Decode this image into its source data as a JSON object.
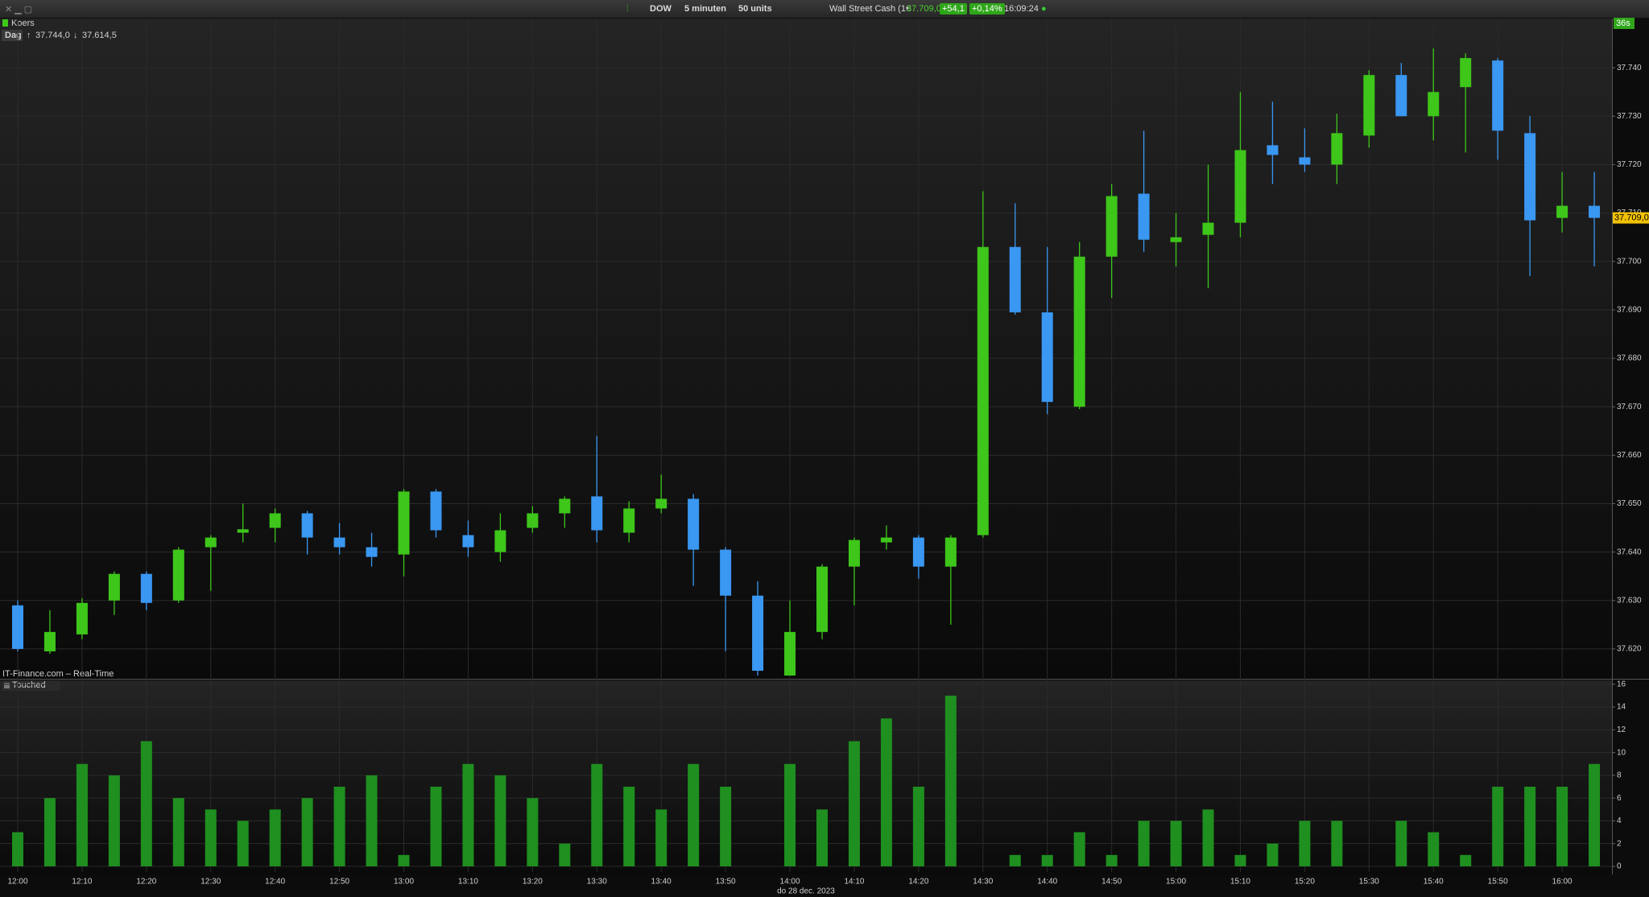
{
  "toolbar": {
    "symbol": "DOW",
    "interval": "5 minuten",
    "units": "50 units",
    "instrument": "Wall Street Cash (1€",
    "last": "37.709,0",
    "change": "+54,1",
    "change_pct": "+0,14%",
    "time": "16:09:24"
  },
  "legend": {
    "series": "Koers",
    "period": "Dag",
    "day_high": "37.744,0",
    "day_low": "37.614,5"
  },
  "date_label": "do 28 dec. 2023",
  "chart_data": [
    {
      "type": "candlestick",
      "name": "Koers",
      "source": "IT-Finance.com – Real-Time",
      "timer": "36s",
      "up_color": "#3ec61a",
      "down_color": "#3a97f2",
      "grid": true,
      "categories": [
        "12:00",
        null,
        "12:10",
        null,
        "12:20",
        null,
        "12:30",
        null,
        "12:40",
        null,
        "12:50",
        null,
        "13:00",
        null,
        "13:10",
        null,
        "13:20",
        null,
        "13:30",
        null,
        "13:40",
        null,
        "13:50",
        null,
        "14:00",
        null,
        "14:10",
        null,
        "14:20",
        null,
        "14:30",
        null,
        "14:40",
        null,
        "14:50",
        null,
        "15:00",
        null,
        "15:10",
        null,
        "15:20",
        null,
        "15:30",
        null,
        "15:40",
        null,
        "15:50",
        null,
        "16:00",
        null
      ],
      "open": [
        37629,
        37619.5,
        37623,
        37630,
        37635.5,
        37630,
        37641,
        37644,
        37645,
        37648,
        37643,
        37641,
        37639.5,
        37652.5,
        37643.5,
        37640,
        37645,
        37648,
        37651.5,
        37644,
        37649,
        37651,
        37640.5,
        37631,
        37614.5,
        37623.5,
        37637,
        37642,
        37643,
        37637,
        37643.5,
        37703,
        37689.5,
        37670,
        37701,
        37714,
        37704,
        37705.5,
        37708,
        37724,
        37721.5,
        37720,
        37726,
        37738.5,
        37730,
        37736,
        37741.5,
        37726.5,
        37709,
        37711.5
      ],
      "high": [
        37630,
        37628,
        37630.5,
        37636,
        37636,
        37641,
        37643.5,
        37650,
        37649,
        37648.5,
        37646,
        37644,
        37653,
        37653,
        37646.5,
        37648,
        37649.5,
        37651.5,
        37664,
        37650.5,
        37656,
        37652,
        37641,
        37634,
        37630,
        37637.5,
        37643,
        37645.5,
        37643.5,
        37643.5,
        37714.5,
        37712,
        37703,
        37704,
        37716,
        37727,
        37710,
        37720,
        37735,
        37733,
        37727.5,
        37730.5,
        37739.5,
        37741,
        37744,
        37743,
        37742,
        37730,
        37718.5,
        37718.5
      ],
      "low": [
        37619.5,
        37619,
        37622,
        37627,
        37628,
        37629.5,
        37632,
        37642,
        37642,
        37639.5,
        37639.5,
        37637,
        37635,
        37643,
        37639,
        37638,
        37644,
        37645,
        37642,
        37642,
        37648,
        37633,
        37619.5,
        37614.5,
        37614.5,
        37622,
        37629,
        37640.5,
        37634.5,
        37625,
        37643,
        37689,
        37668.5,
        37669.5,
        37692.5,
        37702,
        37699,
        37694.5,
        37705,
        37716,
        37718.5,
        37716,
        37723.5,
        37730,
        37725,
        37722.5,
        37721,
        37697,
        37706,
        37699
      ],
      "close": [
        37620,
        37623.5,
        37629.5,
        37635.5,
        37629.5,
        37640.5,
        37643,
        37644.7,
        37648,
        37643,
        37641,
        37639,
        37652.5,
        37644.5,
        37641,
        37644.5,
        37648,
        37651,
        37644.5,
        37649,
        37651,
        37640.5,
        37631,
        37615.5,
        37623.5,
        37637,
        37642.5,
        37643,
        37637,
        37643,
        37703,
        37689.5,
        37671,
        37701,
        37713.5,
        37704.5,
        37705,
        37708,
        37723,
        37722,
        37720,
        37726.5,
        37738.5,
        37730,
        37735,
        37742,
        37727,
        37708.5,
        37711.5,
        37709
      ],
      "ylim": [
        37614,
        37750
      ],
      "yticks": [
        {
          "value": 37620,
          "label": "37.620"
        },
        {
          "value": 37630,
          "label": "37.630"
        },
        {
          "value": 37640,
          "label": "37.640"
        },
        {
          "value": 37650,
          "label": "37.650"
        },
        {
          "value": 37660,
          "label": "37.660"
        },
        {
          "value": 37670,
          "label": "37.670"
        },
        {
          "value": 37680,
          "label": "37.680"
        },
        {
          "value": 37690,
          "label": "37.690"
        },
        {
          "value": 37700,
          "label": "37.700"
        },
        {
          "value": 37710,
          "label": "37.710"
        },
        {
          "value": 37720,
          "label": "37.720"
        },
        {
          "value": 37730,
          "label": "37.730"
        },
        {
          "value": 37740,
          "label": "37.740"
        }
      ],
      "last_price": {
        "value": 37709,
        "label": "37.709,0"
      }
    },
    {
      "type": "bar",
      "name": "Touched",
      "color": "#1f8f1f",
      "grid": true,
      "values": [
        3,
        6,
        9,
        8,
        11,
        6,
        5,
        4,
        5,
        6,
        7,
        8,
        1,
        7,
        9,
        8,
        6,
        2,
        9,
        7,
        5,
        9,
        7,
        0,
        9,
        5,
        11,
        13,
        7,
        15,
        0,
        1,
        1,
        3,
        1,
        4,
        4,
        5,
        1,
        2,
        4,
        4,
        0,
        4,
        3,
        1,
        7,
        7,
        7,
        9
      ],
      "ylim": [
        -0.5,
        16.2
      ],
      "yticks": [
        0,
        2,
        4,
        6,
        8,
        10,
        12,
        14,
        16
      ]
    }
  ]
}
